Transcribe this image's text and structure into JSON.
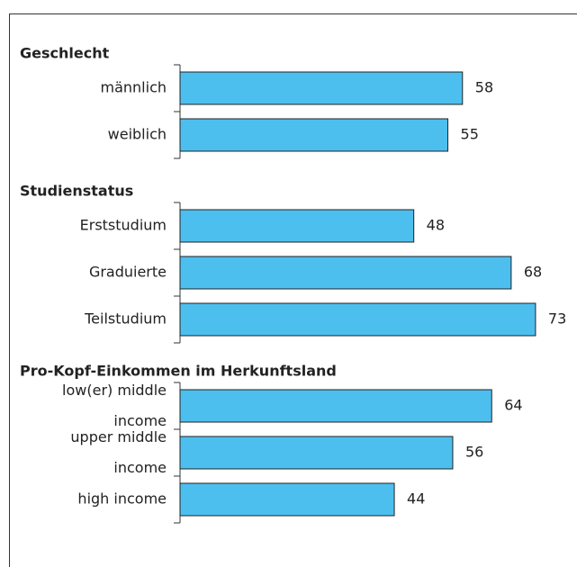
{
  "chart_data": {
    "type": "bar",
    "color": "#4dbfef",
    "groups": [
      {
        "title": "Geschlecht",
        "categories": [
          "männlich",
          "weiblich"
        ],
        "values": [
          58,
          55
        ]
      },
      {
        "title": "Studienstatus",
        "categories": [
          "Erststudium",
          "Graduierte",
          "Teilstudium"
        ],
        "values": [
          48,
          68,
          73
        ]
      },
      {
        "title": "Pro-Kopf-Einkommen im Herkunftsland",
        "categories": [
          "low(er) middle income",
          "upper middle income",
          "high income"
        ],
        "values": [
          64,
          56,
          44
        ]
      }
    ]
  }
}
